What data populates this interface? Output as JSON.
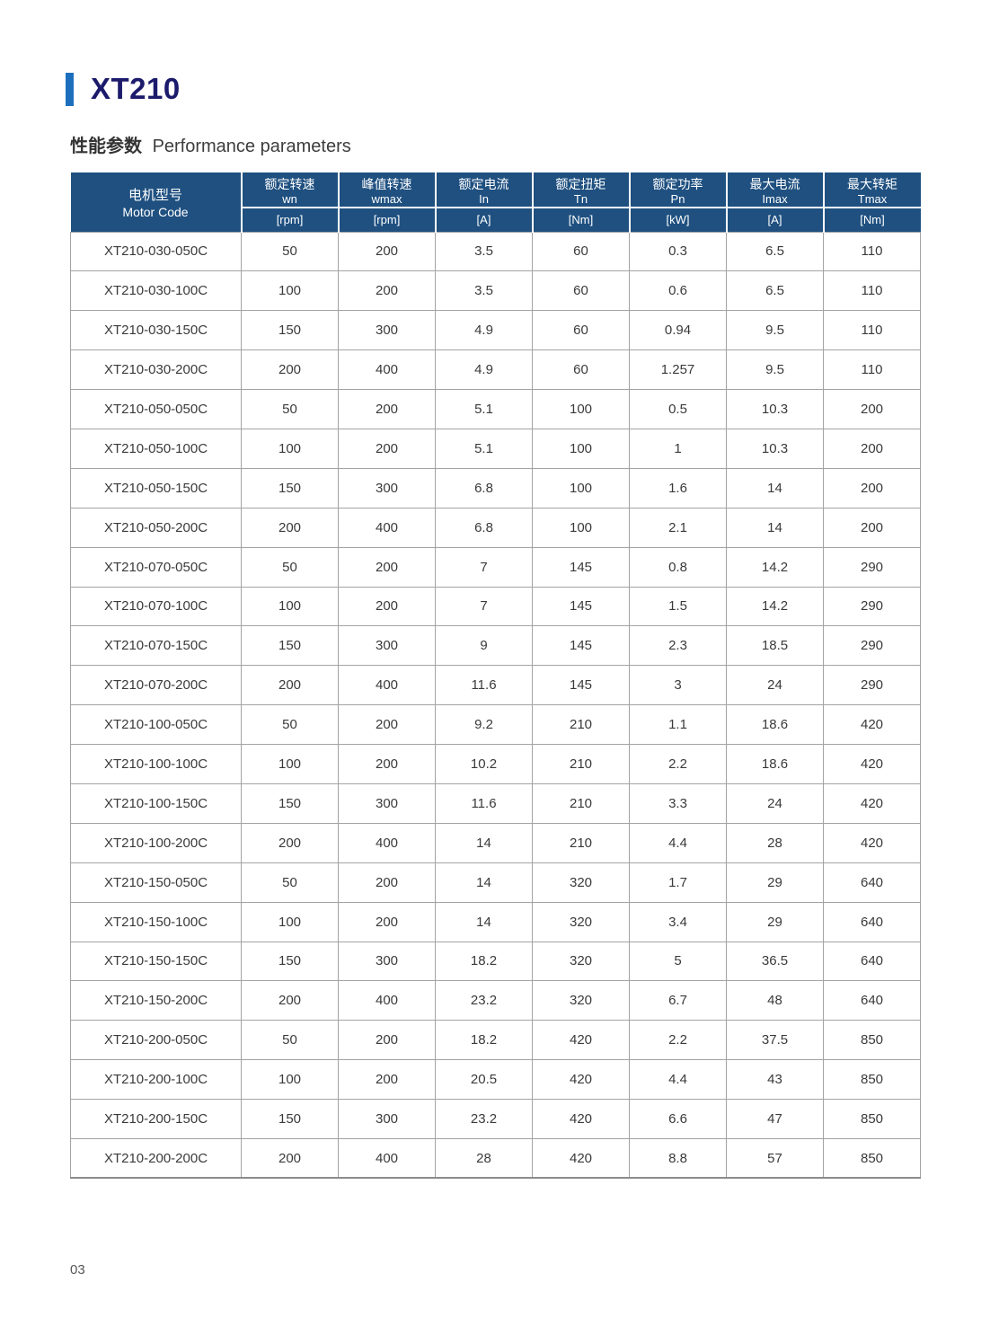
{
  "page": {
    "title": "XT210",
    "section_heading_zh": "性能参数",
    "section_heading_en": "Performance parameters",
    "page_number": "03"
  },
  "colors": {
    "accent_bar": "#1d6fbe",
    "title_text": "#1b1a6b",
    "table_header_bg": "#1f5080",
    "table_header_text": "#ffffff",
    "table_border": "#a3a3a3",
    "body_text": "#3a3a3a"
  },
  "table": {
    "motor_code_header": {
      "zh": "电机型号",
      "en": "Motor Code"
    },
    "columns": [
      {
        "zh": "额定转速",
        "symbol": "wn",
        "unit": "[rpm]"
      },
      {
        "zh": "峰值转速",
        "symbol": "wmax",
        "unit": "[rpm]"
      },
      {
        "zh": "额定电流",
        "symbol": "In",
        "unit": "[A]"
      },
      {
        "zh": "额定扭矩",
        "symbol": "Tn",
        "unit": "[Nm]"
      },
      {
        "zh": "额定功率",
        "symbol": "Pn",
        "unit": "[kW]"
      },
      {
        "zh": "最大电流",
        "symbol": "Imax",
        "unit": "[A]"
      },
      {
        "zh": "最大转矩",
        "symbol": "Tmax",
        "unit": "[Nm]"
      }
    ],
    "rows": [
      [
        "XT210-030-050C",
        "50",
        "200",
        "3.5",
        "60",
        "0.3",
        "6.5",
        "110"
      ],
      [
        "XT210-030-100C",
        "100",
        "200",
        "3.5",
        "60",
        "0.6",
        "6.5",
        "110"
      ],
      [
        "XT210-030-150C",
        "150",
        "300",
        "4.9",
        "60",
        "0.94",
        "9.5",
        "110"
      ],
      [
        "XT210-030-200C",
        "200",
        "400",
        "4.9",
        "60",
        "1.257",
        "9.5",
        "110"
      ],
      [
        "XT210-050-050C",
        "50",
        "200",
        "5.1",
        "100",
        "0.5",
        "10.3",
        "200"
      ],
      [
        "XT210-050-100C",
        "100",
        "200",
        "5.1",
        "100",
        "1",
        "10.3",
        "200"
      ],
      [
        "XT210-050-150C",
        "150",
        "300",
        "6.8",
        "100",
        "1.6",
        "14",
        "200"
      ],
      [
        "XT210-050-200C",
        "200",
        "400",
        "6.8",
        "100",
        "2.1",
        "14",
        "200"
      ],
      [
        "XT210-070-050C",
        "50",
        "200",
        "7",
        "145",
        "0.8",
        "14.2",
        "290"
      ],
      [
        "XT210-070-100C",
        "100",
        "200",
        "7",
        "145",
        "1.5",
        "14.2",
        "290"
      ],
      [
        "XT210-070-150C",
        "150",
        "300",
        "9",
        "145",
        "2.3",
        "18.5",
        "290"
      ],
      [
        "XT210-070-200C",
        "200",
        "400",
        "11.6",
        "145",
        "3",
        "24",
        "290"
      ],
      [
        "XT210-100-050C",
        "50",
        "200",
        "9.2",
        "210",
        "1.1",
        "18.6",
        "420"
      ],
      [
        "XT210-100-100C",
        "100",
        "200",
        "10.2",
        "210",
        "2.2",
        "18.6",
        "420"
      ],
      [
        "XT210-100-150C",
        "150",
        "300",
        "11.6",
        "210",
        "3.3",
        "24",
        "420"
      ],
      [
        "XT210-100-200C",
        "200",
        "400",
        "14",
        "210",
        "4.4",
        "28",
        "420"
      ],
      [
        "XT210-150-050C",
        "50",
        "200",
        "14",
        "320",
        "1.7",
        "29",
        "640"
      ],
      [
        "XT210-150-100C",
        "100",
        "200",
        "14",
        "320",
        "3.4",
        "29",
        "640"
      ],
      [
        "XT210-150-150C",
        "150",
        "300",
        "18.2",
        "320",
        "5",
        "36.5",
        "640"
      ],
      [
        "XT210-150-200C",
        "200",
        "400",
        "23.2",
        "320",
        "6.7",
        "48",
        "640"
      ],
      [
        "XT210-200-050C",
        "50",
        "200",
        "18.2",
        "420",
        "2.2",
        "37.5",
        "850"
      ],
      [
        "XT210-200-100C",
        "100",
        "200",
        "20.5",
        "420",
        "4.4",
        "43",
        "850"
      ],
      [
        "XT210-200-150C",
        "150",
        "300",
        "23.2",
        "420",
        "6.6",
        "47",
        "850"
      ],
      [
        "XT210-200-200C",
        "200",
        "400",
        "28",
        "420",
        "8.8",
        "57",
        "850"
      ]
    ]
  }
}
